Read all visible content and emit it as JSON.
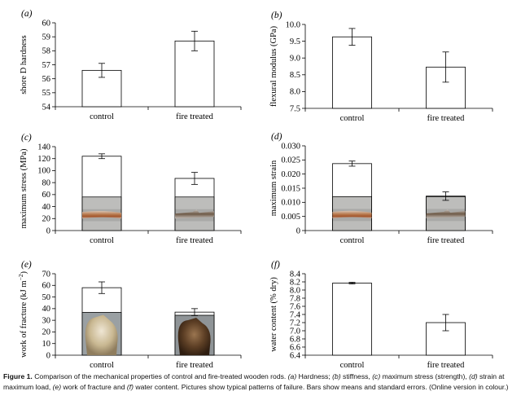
{
  "figure": {
    "caption_label": "Figure 1.",
    "caption_parts": [
      {
        "t": " Comparison of the mechanical properties of control and fire-treated wooden rods. ",
        "i": false
      },
      {
        "t": "(a)",
        "i": true
      },
      {
        "t": " Hardness; ",
        "i": false
      },
      {
        "t": "(b)",
        "i": true
      },
      {
        "t": " stiffness, ",
        "i": false
      },
      {
        "t": "(c)",
        "i": true
      },
      {
        "t": " maximum stress (strength), ",
        "i": false
      },
      {
        "t": "(d)",
        "i": true
      },
      {
        "t": " strain at maximum load, ",
        "i": false
      },
      {
        "t": "(e)",
        "i": true
      },
      {
        "t": " work of fracture and ",
        "i": false
      },
      {
        "t": "(f)",
        "i": true
      },
      {
        "t": " water content. Pictures show typical patterns of failure. Bars show means and standard errors. (Online version in colour.)",
        "i": false
      }
    ]
  },
  "chart_data": [
    {
      "type": "bar",
      "panel_label": "(a)",
      "ylabel": "shore D hardness",
      "categories": [
        "control",
        "fire treated"
      ],
      "values": [
        56.6,
        58.7
      ],
      "errors": [
        0.5,
        0.7
      ],
      "ylim": [
        54,
        60
      ],
      "yticks": [
        "54",
        "55",
        "56",
        "57",
        "58",
        "59",
        "60"
      ],
      "has_photos": false
    },
    {
      "type": "bar",
      "panel_label": "(b)",
      "ylabel": "flexural modulus (GPa)",
      "categories": [
        "control",
        "fire treated"
      ],
      "values": [
        9.63,
        8.73
      ],
      "errors": [
        0.25,
        0.45
      ],
      "ylim": [
        7.5,
        10.0
      ],
      "yticks": [
        "7.5",
        "8.0",
        "8.5",
        "9.0",
        "9.5",
        "10.0"
      ],
      "has_photos": false
    },
    {
      "type": "bar",
      "panel_label": "(c)",
      "ylabel": "maximum stress (MPa)",
      "categories": [
        "control",
        "fire treated"
      ],
      "values": [
        124,
        87
      ],
      "errors": [
        4,
        10
      ],
      "ylim": [
        0,
        140
      ],
      "yticks": [
        "0",
        "20",
        "40",
        "60",
        "80",
        "100",
        "120",
        "140"
      ],
      "has_photos": true
    },
    {
      "type": "bar",
      "panel_label": "(d)",
      "ylabel": "maximum strain",
      "categories": [
        "control",
        "fire treated"
      ],
      "values": [
        0.0237,
        0.0122
      ],
      "errors": [
        0.0009,
        0.0015
      ],
      "ylim": [
        0,
        0.03
      ],
      "yticks": [
        "0",
        "0.005",
        "0.010",
        "0.015",
        "0.020",
        "0.025",
        "0.030"
      ],
      "has_photos": true
    },
    {
      "type": "bar",
      "panel_label": "(e)",
      "ylabel": "work of fracture (kJ m",
      "ylabel_sup": "−2",
      "ylabel_end": ")",
      "categories": [
        "control",
        "fire treated"
      ],
      "values": [
        58,
        37
      ],
      "errors": [
        5,
        3
      ],
      "ylim": [
        0,
        70
      ],
      "yticks": [
        "0",
        "10",
        "20",
        "30",
        "40",
        "50",
        "60",
        "70"
      ],
      "has_photos": true
    },
    {
      "type": "bar",
      "panel_label": "(f)",
      "ylabel": "water content (% dry)",
      "categories": [
        "control",
        "fire treated"
      ],
      "values": [
        8.17,
        7.2
      ],
      "errors": [
        0.02,
        0.2
      ],
      "ylim": [
        6.4,
        8.4
      ],
      "yticks": [
        "6.4",
        "6.6",
        "6.8",
        "7.0",
        "7.2",
        "7.4",
        "7.6",
        "7.8",
        "8.0",
        "8.2",
        "8.4"
      ],
      "has_photos": false
    }
  ]
}
